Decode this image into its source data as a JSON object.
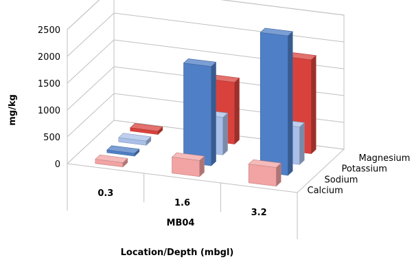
{
  "chart_data": {
    "type": "bar",
    "projection": "3d-clustered",
    "categories": [
      "0.3",
      "1.6",
      "3.2"
    ],
    "category_group": "MB04",
    "xlabel": "Location/Depth (mbgl)",
    "ylabel": "mg/kg",
    "ylim": [
      0,
      2500
    ],
    "yticks": [
      "0",
      "500",
      "1000",
      "1500",
      "2000",
      "2500"
    ],
    "grid": true,
    "series": [
      {
        "name": "Calcium",
        "color": "#f2a3a3",
        "values": [
          80,
          300,
          350
        ]
      },
      {
        "name": "Sodium",
        "color": "#4f7fc6",
        "values": [
          50,
          1850,
          2600
        ]
      },
      {
        "name": "Potassium",
        "color": "#a9bfe8",
        "values": [
          80,
          700,
          700
        ]
      },
      {
        "name": "Magnesium",
        "color": "#d9423c",
        "values": [
          60,
          1150,
          1750
        ]
      }
    ]
  }
}
